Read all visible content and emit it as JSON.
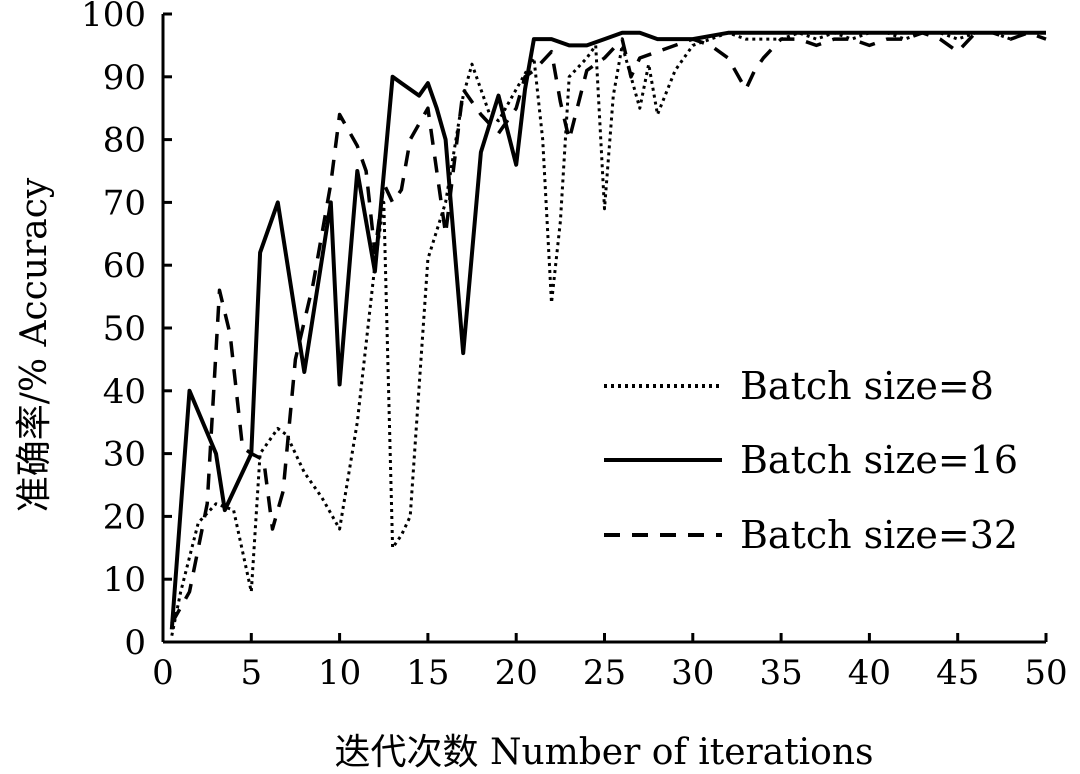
{
  "chart_data": {
    "type": "line",
    "xlabel": "迭代次数 Number of iterations",
    "ylabel": "准确率/% Accuracy",
    "xlim": [
      0,
      50
    ],
    "ylim": [
      0,
      100
    ],
    "xticks": [
      0,
      5,
      10,
      15,
      20,
      25,
      30,
      35,
      40,
      45,
      50
    ],
    "yticks": [
      0,
      10,
      20,
      30,
      40,
      50,
      60,
      70,
      80,
      90,
      100
    ],
    "grid": false,
    "legend_position": "center-right",
    "series": [
      {
        "name": "Batch size=8",
        "style": "dotted",
        "x": [
          0.5,
          1,
          2,
          3,
          4,
          5,
          5.5,
          6,
          6.5,
          7,
          8,
          9,
          10,
          11,
          12,
          12.5,
          13,
          13.5,
          14,
          15,
          16,
          17,
          17.5,
          18,
          18.5,
          19,
          20,
          21,
          21.5,
          22,
          22.5,
          23,
          24,
          24.5,
          25,
          25.5,
          26,
          27,
          27.5,
          28,
          29,
          30,
          31,
          32,
          33,
          34,
          35,
          36,
          37,
          38,
          39,
          40,
          41,
          42,
          43,
          44,
          45,
          46,
          47,
          48,
          49,
          50
        ],
        "y": [
          1,
          8,
          19,
          22,
          21,
          8,
          30,
          32,
          34,
          33,
          27,
          23,
          18,
          35,
          60,
          70,
          15,
          17,
          20,
          61,
          70,
          87,
          92,
          88,
          84,
          83,
          88,
          93,
          80,
          54,
          67,
          90,
          93,
          95,
          69,
          87,
          95,
          85,
          92,
          84,
          91,
          95,
          96,
          97,
          96,
          96,
          96,
          97,
          96,
          97,
          96,
          97,
          97,
          96,
          97,
          97,
          96,
          97,
          97,
          96,
          97,
          97
        ]
      },
      {
        "name": "Batch size=16",
        "style": "solid",
        "x": [
          0.5,
          1.5,
          3,
          3.5,
          5,
          5.5,
          6.5,
          8,
          9.5,
          10,
          11,
          12,
          13,
          13.5,
          14.5,
          15,
          15.5,
          16,
          17,
          18,
          19,
          20,
          20.5,
          21,
          22,
          23,
          24,
          25,
          26,
          27,
          28,
          30,
          32,
          34,
          36,
          38,
          40,
          42,
          44,
          46,
          48,
          50
        ],
        "y": [
          2,
          40,
          30,
          21,
          30,
          62,
          70,
          43,
          70,
          41,
          75,
          59,
          90,
          89,
          87,
          89,
          85,
          80,
          46,
          78,
          87,
          76,
          88,
          96,
          96,
          95,
          95,
          96,
          97,
          97,
          96,
          96,
          97,
          97,
          97,
          97,
          97,
          97,
          97,
          97,
          97,
          97
        ]
      },
      {
        "name": "Batch size=32",
        "style": "dashed",
        "x": [
          0.5,
          1.5,
          2.5,
          3.2,
          3.8,
          4.5,
          5,
          5.7,
          6.2,
          6.8,
          7.5,
          8.5,
          9.5,
          10,
          11,
          11.5,
          12,
          12.5,
          13,
          13.5,
          14,
          15,
          16,
          17,
          18,
          19,
          20,
          20.5,
          21,
          22,
          22.5,
          23,
          24,
          25,
          26,
          26.5,
          27,
          28,
          29,
          30,
          31,
          32,
          33,
          33.5,
          34,
          35,
          36,
          37,
          38,
          39,
          40,
          41,
          42,
          43,
          44,
          45,
          46,
          47,
          48,
          49,
          50
        ],
        "y": [
          3,
          8,
          22,
          56,
          49,
          31,
          30,
          29,
          18,
          24,
          45,
          57,
          73,
          84,
          79,
          75,
          62,
          73,
          70,
          72,
          80,
          85,
          65,
          88,
          84,
          81,
          85,
          90,
          91,
          94,
          86,
          80,
          91,
          93,
          96,
          90,
          93,
          94,
          95,
          96,
          95,
          93,
          88,
          91,
          93,
          96,
          96,
          95,
          96,
          96,
          95,
          96,
          96,
          97,
          96,
          94,
          97,
          97,
          96,
          97,
          96
        ]
      }
    ]
  }
}
